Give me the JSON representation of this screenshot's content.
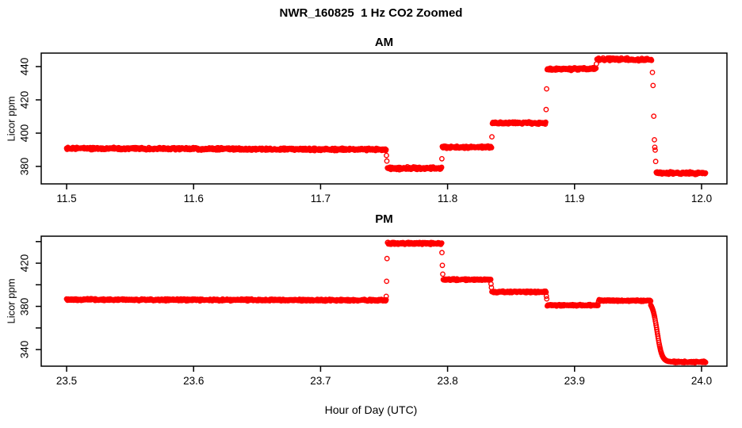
{
  "page": {
    "title": "NWR_160825  1 Hz CO2 Zoomed",
    "xlabel": "Hour of Day (UTC)"
  },
  "colors": {
    "points": "#ff0000",
    "axis": "#000000",
    "background": "#ffffff"
  },
  "chart_data": [
    {
      "type": "scatter",
      "title": "AM",
      "ylabel": "Licor ppm",
      "marker": "open-circle-red",
      "xlim": [
        11.48,
        12.02
      ],
      "ylim": [
        369.5,
        448.1
      ],
      "xticks": [
        {
          "v": 11.5,
          "label": "11.5"
        },
        {
          "v": 11.6,
          "label": "11.6"
        },
        {
          "v": 11.7,
          "label": "11.7"
        },
        {
          "v": 11.8,
          "label": "11.8"
        },
        {
          "v": 11.9,
          "label": "11.9"
        },
        {
          "v": 12.0,
          "label": "12.0"
        }
      ],
      "yticks": [
        {
          "v": 380,
          "label": "380"
        },
        {
          "v": 400,
          "label": "400"
        },
        {
          "v": 420,
          "label": "420"
        },
        {
          "v": 440,
          "label": "440"
        }
      ],
      "segments": [
        {
          "kind": "plateau",
          "x0": 11.5,
          "x1": 11.7515,
          "y0": 390.9,
          "y1": 390.1,
          "noise": 0.55,
          "seed": 11
        },
        {
          "kind": "points",
          "pts": [
            [
              11.7519,
              386.6
            ],
            [
              11.7522,
              383.2
            ]
          ]
        },
        {
          "kind": "plateau",
          "x0": 11.7526,
          "x1": 11.7952,
          "y0": 378.9,
          "y1": 378.9,
          "noise": 0.6,
          "seed": 22
        },
        {
          "kind": "points",
          "pts": [
            [
              11.7955,
              384.6
            ]
          ]
        },
        {
          "kind": "plateau",
          "x0": 11.7958,
          "x1": 11.8345,
          "y0": 391.6,
          "y1": 391.6,
          "noise": 0.5,
          "seed": 33
        },
        {
          "kind": "points",
          "pts": [
            [
              11.8349,
              397.8
            ]
          ]
        },
        {
          "kind": "plateau",
          "x0": 11.8353,
          "x1": 11.877,
          "y0": 406.1,
          "y1": 406.1,
          "noise": 0.5,
          "seed": 44
        },
        {
          "kind": "points",
          "pts": [
            [
              11.8776,
              414.2
            ],
            [
              11.878,
              426.6
            ]
          ]
        },
        {
          "kind": "plateau",
          "x0": 11.8784,
          "x1": 11.9168,
          "y0": 438.4,
          "y1": 438.7,
          "noise": 0.6,
          "seed": 55
        },
        {
          "kind": "points",
          "pts": [
            [
              11.9172,
              441.6
            ]
          ]
        },
        {
          "kind": "plateau",
          "x0": 11.9176,
          "x1": 11.9606,
          "y0": 444.5,
          "y1": 444.2,
          "noise": 0.6,
          "seed": 66
        },
        {
          "kind": "points",
          "pts": [
            [
              11.9613,
              436.5
            ],
            [
              11.9618,
              428.6
            ],
            [
              11.9624,
              410.2
            ],
            [
              11.9629,
              396.0
            ],
            [
              11.9632,
              391.5
            ],
            [
              11.9635,
              389.8
            ],
            [
              11.9639,
              383.0
            ]
          ]
        },
        {
          "kind": "plateau",
          "x0": 11.9643,
          "x1": 12.003,
          "y0": 376.3,
          "y1": 375.9,
          "noise": 0.6,
          "seed": 77
        }
      ]
    },
    {
      "type": "scatter",
      "title": "PM",
      "ylabel": "Licor ppm",
      "marker": "open-circle-red",
      "xlim": [
        23.48,
        24.02
      ],
      "ylim": [
        324.6,
        445.0
      ],
      "xticks": [
        {
          "v": 23.5,
          "label": "23.5"
        },
        {
          "v": 23.6,
          "label": "23.6"
        },
        {
          "v": 23.7,
          "label": "23.7"
        },
        {
          "v": 23.8,
          "label": "23.8"
        },
        {
          "v": 23.9,
          "label": "23.9"
        },
        {
          "v": 24.0,
          "label": "24.0"
        }
      ],
      "yticks": [
        {
          "v": 340,
          "label": "340"
        },
        {
          "v": 360,
          "label": ""
        },
        {
          "v": 380,
          "label": "380"
        },
        {
          "v": 400,
          "label": ""
        },
        {
          "v": 420,
          "label": "420"
        },
        {
          "v": 440,
          "label": ""
        }
      ],
      "segments": [
        {
          "kind": "plateau",
          "x0": 23.5,
          "x1": 23.7513,
          "y0": 386.3,
          "y1": 385.6,
          "noise": 0.65,
          "seed": 101
        },
        {
          "kind": "points",
          "pts": [
            [
              23.7517,
              389.3
            ],
            [
              23.752,
              403.2
            ],
            [
              23.7523,
              424.3
            ]
          ]
        },
        {
          "kind": "plateau",
          "x0": 23.7527,
          "x1": 23.7952,
          "y0": 438.3,
          "y1": 438.3,
          "noise": 0.7,
          "seed": 112
        },
        {
          "kind": "points",
          "pts": [
            [
              23.7956,
              429.8
            ],
            [
              23.7959,
              418.0
            ],
            [
              23.7962,
              409.8
            ]
          ]
        },
        {
          "kind": "plateau",
          "x0": 23.7966,
          "x1": 23.8338,
          "y0": 404.8,
          "y1": 404.8,
          "noise": 0.55,
          "seed": 123
        },
        {
          "kind": "points",
          "pts": [
            [
              23.8342,
              400.7
            ],
            [
              23.8345,
              397.4
            ]
          ]
        },
        {
          "kind": "plateau",
          "x0": 23.8349,
          "x1": 23.8773,
          "y0": 393.4,
          "y1": 393.4,
          "noise": 0.55,
          "seed": 134
        },
        {
          "kind": "points",
          "pts": [
            [
              23.8778,
              389.4
            ],
            [
              23.8781,
              386.9
            ]
          ]
        },
        {
          "kind": "plateau",
          "x0": 23.8785,
          "x1": 23.9183,
          "y0": 381.0,
          "y1": 381.0,
          "noise": 0.55,
          "seed": 145
        },
        {
          "kind": "points",
          "pts": [
            [
              23.9187,
              383.4
            ]
          ]
        },
        {
          "kind": "plateau",
          "x0": 23.919,
          "x1": 23.9598,
          "y0": 385.5,
          "y1": 385.2,
          "noise": 0.55,
          "seed": 156
        },
        {
          "kind": "sigmoid",
          "x0": 23.96,
          "x1": 23.978,
          "yhi": 385.0,
          "ylo": 328.6,
          "xmid": 23.965,
          "tau": 0.0019
        },
        {
          "kind": "plateau",
          "x0": 23.978,
          "x1": 24.003,
          "y0": 328.6,
          "y1": 328.4,
          "noise": 0.6,
          "seed": 167
        }
      ]
    }
  ]
}
